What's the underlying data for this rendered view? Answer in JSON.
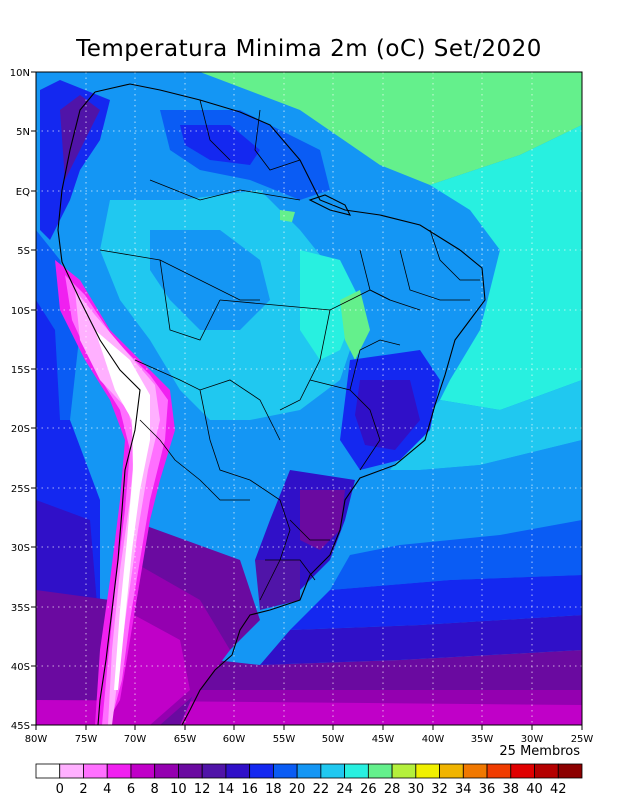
{
  "title": "Temperatura Minima 2m (oC) Set/2020",
  "members_note": "25 Membros",
  "lat_labels": [
    "10N",
    "5N",
    "EQ",
    "5S",
    "10S",
    "15S",
    "20S",
    "25S",
    "30S",
    "35S",
    "40S",
    "45S"
  ],
  "lon_labels": [
    "80W",
    "75W",
    "70W",
    "65W",
    "60W",
    "55W",
    "50W",
    "45W",
    "40W",
    "35W",
    "30W",
    "25W"
  ],
  "legend": {
    "labels": [
      "0",
      "2",
      "4",
      "6",
      "8",
      "10",
      "12",
      "14",
      "16",
      "18",
      "20",
      "22",
      "24",
      "26",
      "28",
      "30",
      "32",
      "34",
      "36",
      "38",
      "40",
      "42"
    ],
    "colors": [
      "#ffffff",
      "#ffb0ff",
      "#ff70ff",
      "#f020f0",
      "#c000c8",
      "#9400b0",
      "#6a0aa0",
      "#5014a8",
      "#3010c8",
      "#1428f0",
      "#0a5cf4",
      "#1496f4",
      "#20c8f0",
      "#28f0e0",
      "#64f08c",
      "#b4f03c",
      "#f0f000",
      "#f0b400",
      "#f07800",
      "#f03c00",
      "#e00000",
      "#b40000",
      "#8c0000"
    ]
  }
}
